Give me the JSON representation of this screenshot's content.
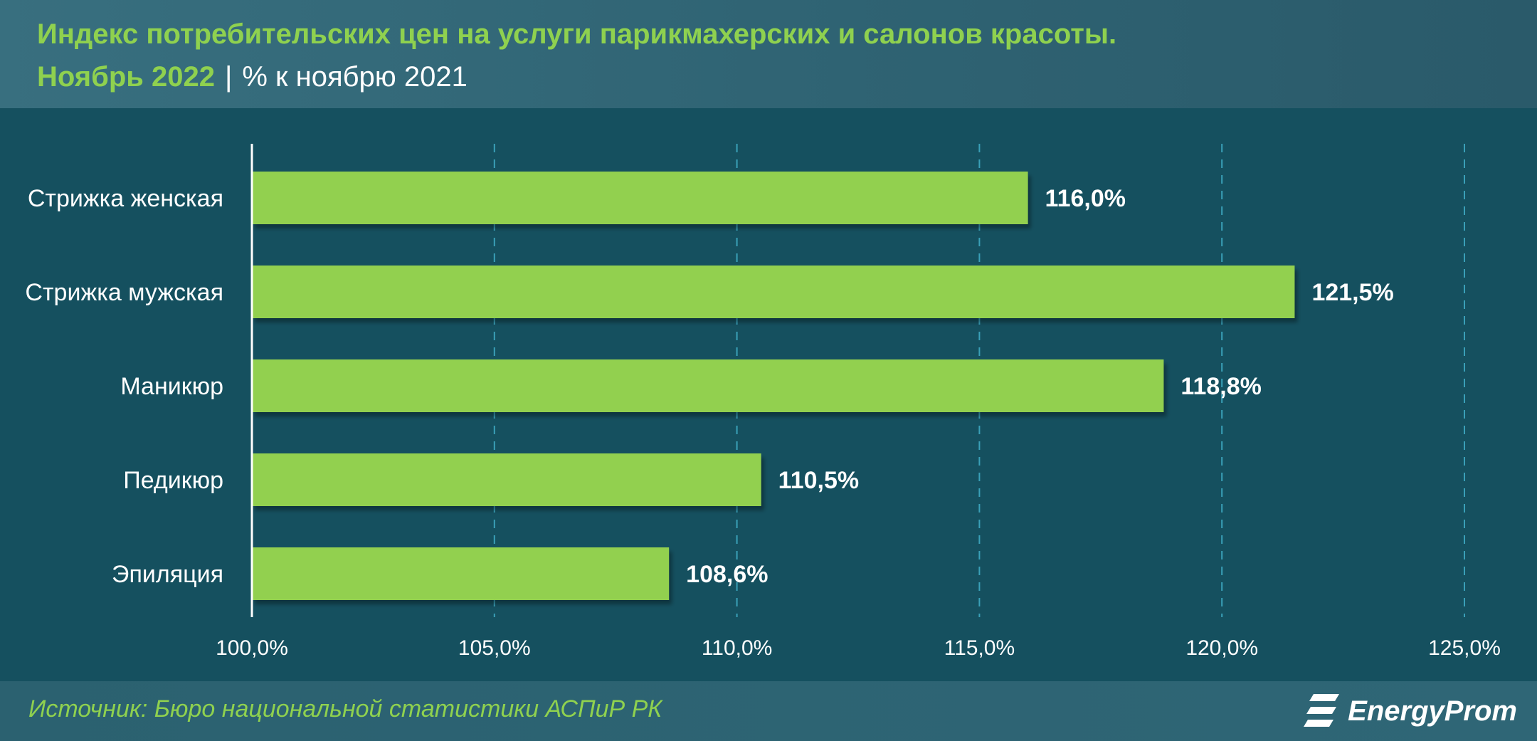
{
  "header": {
    "title": "Индекс потребительских цен на услуги парикмахерских и салонов красоты.",
    "period": "Ноябрь 2022",
    "separator": "|",
    "unit": "% к ноябрю 2021"
  },
  "chart_data": {
    "type": "bar",
    "orientation": "horizontal",
    "categories": [
      "Стрижка женская",
      "Стрижка мужская",
      "Маникюр",
      "Педикюр",
      "Эпиляция"
    ],
    "values": [
      116.0,
      121.5,
      118.8,
      110.5,
      108.6
    ],
    "data_labels": [
      "116,0%",
      "121,5%",
      "118,8%",
      "110,5%",
      "108,6%"
    ],
    "xlim": [
      100,
      125
    ],
    "x_ticks": [
      100,
      105,
      110,
      115,
      120,
      125
    ],
    "x_tick_labels": [
      "100,0%",
      "105,0%",
      "110,0%",
      "115,0%",
      "120,0%",
      "125,0%"
    ],
    "grid": true,
    "legend": "none",
    "colors": {
      "bar": "#92d050",
      "grid": "#3aa0b8",
      "label": "#ffffff",
      "axis": "#ffffff"
    }
  },
  "footer": {
    "source": "Источник: Бюро национальной статистики АСПиР РК",
    "logo_text": "EnergyProm",
    "logo_icon": "energyprom-logo-icon"
  },
  "colors": {
    "accent": "#8fd14f",
    "background": "#15505f",
    "header_bg": "#2f6373"
  }
}
